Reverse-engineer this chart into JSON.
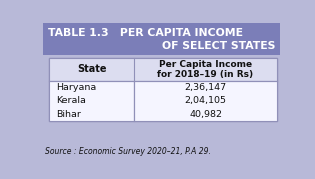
{
  "title_line1": "TABLE 1.3   PER CAPITA INCOME",
  "title_line2": "OF SELECT STATES",
  "header_col1": "State",
  "header_col2": "Per Capita Income\nfor 2018–19 (in Rs)",
  "rows": [
    [
      "Haryana",
      "2,36,147"
    ],
    [
      "Kerala",
      "2,04,105"
    ],
    [
      "Bihar",
      "40,982"
    ]
  ],
  "source": "Source : Economic Survey 2020–21, P.A 29.",
  "title_bg": "#7b7eb8",
  "title_text_color": "#ffffff",
  "header_bg": "#dcddf0",
  "data_bg": "#f5f5ff",
  "outer_bg": "#b8b9d8",
  "border_color": "#9090b8",
  "text_color": "#111111",
  "source_color": "#111111",
  "col_split": 0.4
}
